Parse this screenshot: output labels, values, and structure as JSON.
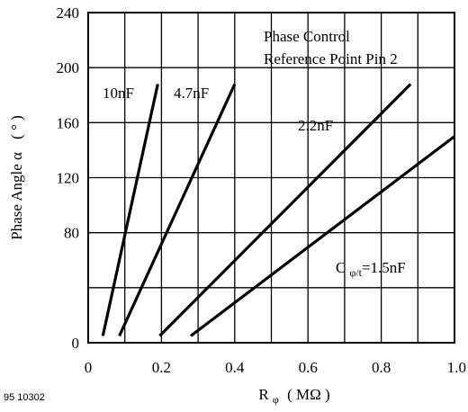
{
  "figure_number": "95 10302",
  "chart_data": {
    "type": "line",
    "title": "",
    "annotation": {
      "line1": "Phase Control",
      "line2": "Reference Point Pin 2"
    },
    "xlabel": {
      "main": "R",
      "sub": "φ",
      "units": "( MΩ )"
    },
    "ylabel": {
      "main": "Phase Angle α",
      "units": "( ° )"
    },
    "xlim": [
      0,
      1.0
    ],
    "ylim": [
      0,
      240
    ],
    "x_ticks": [
      {
        "value": 0,
        "label": "0"
      },
      {
        "value": 0.2,
        "label": "0.2"
      },
      {
        "value": 0.4,
        "label": "0.4"
      },
      {
        "value": 0.6,
        "label": "0.6"
      },
      {
        "value": 0.8,
        "label": "0.8"
      },
      {
        "value": 1.0,
        "label": "1.0"
      }
    ],
    "y_ticks": [
      {
        "value": 0,
        "label": "0"
      },
      {
        "value": 40,
        "label": ""
      },
      {
        "value": 80,
        "label": "80"
      },
      {
        "value": 120,
        "label": "120"
      },
      {
        "value": 160,
        "label": "160"
      },
      {
        "value": 200,
        "label": "200"
      },
      {
        "value": 240,
        "label": "240"
      }
    ],
    "x_grid": [
      0.1,
      0.2,
      0.3,
      0.4,
      0.5,
      0.6,
      0.7,
      0.8,
      0.9
    ],
    "y_grid": [
      40,
      80,
      120,
      160,
      200
    ],
    "series": [
      {
        "name": "10nF",
        "x": [
          0.04,
          0.19
        ],
        "y": [
          5,
          188
        ]
      },
      {
        "name": "4.7nF",
        "x": [
          0.085,
          0.4
        ],
        "y": [
          5,
          188
        ]
      },
      {
        "name": "2.2nF",
        "x": [
          0.195,
          0.88
        ],
        "y": [
          5,
          188
        ]
      },
      {
        "name": "1.5nF",
        "x": [
          0.28,
          1.0
        ],
        "y": [
          5,
          150
        ]
      }
    ],
    "series_labels": [
      {
        "series": 0,
        "text": "10nF",
        "sub": ""
      },
      {
        "series": 1,
        "text": "4.7nF",
        "sub": ""
      },
      {
        "series": 2,
        "text": "2.2nF",
        "sub": ""
      },
      {
        "series": 3,
        "text": "C",
        "sub": "φ/t",
        "suffix": "=1.5nF"
      }
    ]
  }
}
